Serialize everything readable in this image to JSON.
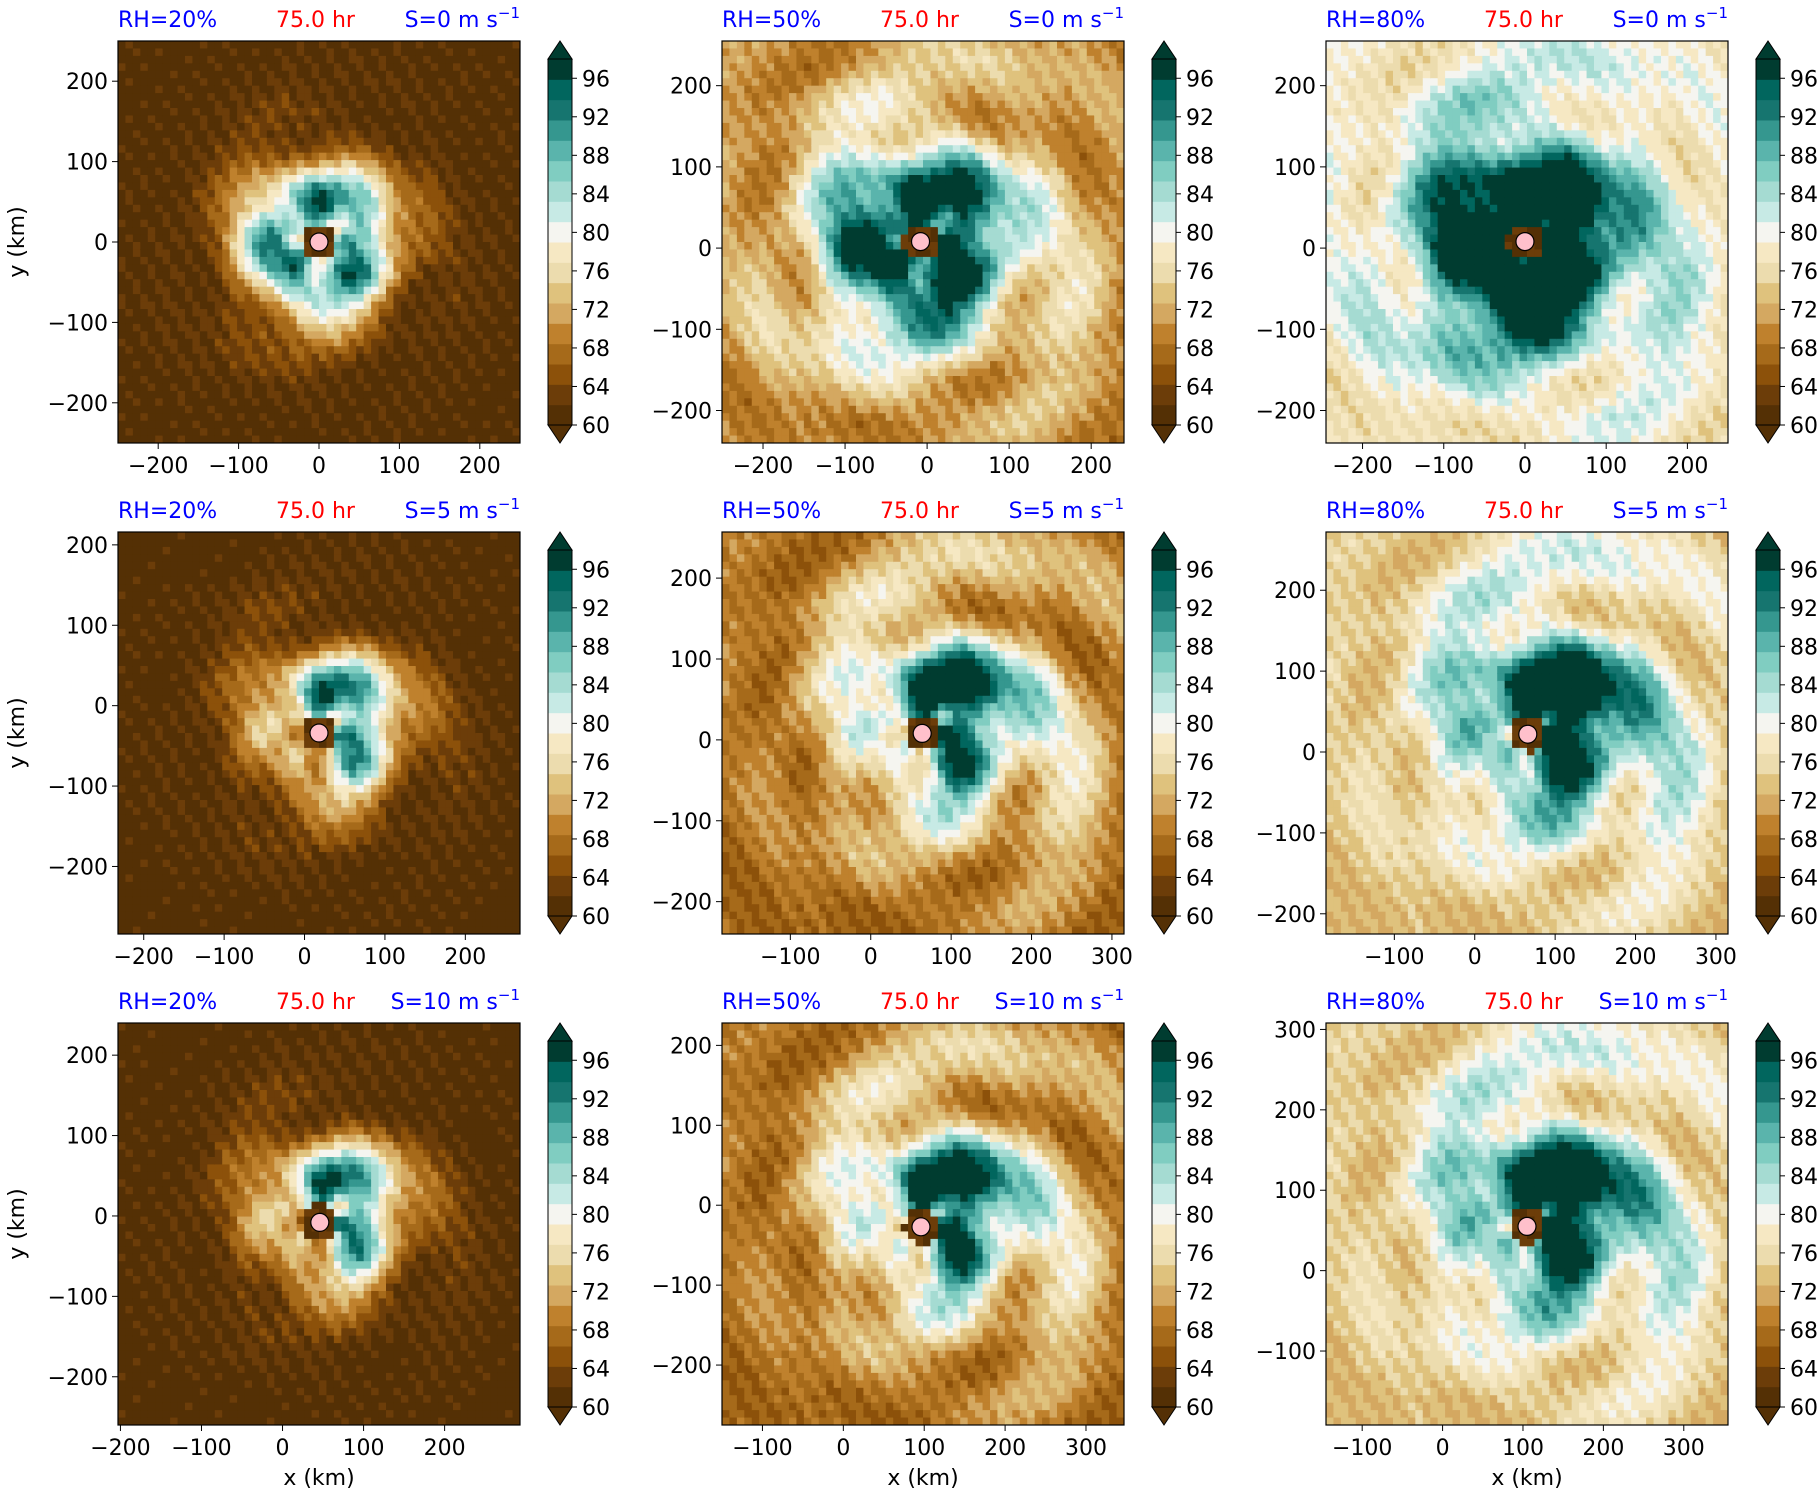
{
  "colors": {
    "rh_label": "#0000ff",
    "time_label": "#ff0000",
    "shear_label": "#0000ff",
    "center_marker": "#ffc0cb",
    "colormap": [
      "#543005",
      "#6c3d09",
      "#8c510a",
      "#a66a1a",
      "#bf812d",
      "#d4a861",
      "#dfc27d",
      "#ecdcae",
      "#f6e8c3",
      "#f5f5f0",
      "#c7eae5",
      "#a5dbd2",
      "#80cdc1",
      "#5ab4ac",
      "#35978f",
      "#16756f",
      "#01665e",
      "#003c30"
    ]
  },
  "chart_data": [
    {
      "type": "heatmap",
      "rh": "RH=20%",
      "time": "75.0 hr",
      "shear": "S=0 m s",
      "shear_sup": "−1",
      "ylabel": "y (km)",
      "xlabel": "",
      "xlim": [
        -250,
        250
      ],
      "ylim": [
        -250,
        250
      ],
      "xticks": [
        -200,
        -100,
        0,
        100,
        200
      ],
      "yticks": [
        -200,
        -100,
        0,
        100,
        200
      ],
      "xtick_labels": [
        "−200",
        "−100",
        "0",
        "100",
        "200"
      ],
      "ytick_labels": [
        "−200",
        "−100",
        "0",
        "100",
        "200"
      ],
      "center": [
        0,
        0
      ],
      "colorbar": {
        "min": 60,
        "max": 98,
        "ticks": [
          "60",
          "64",
          "68",
          "72",
          "76",
          "80",
          "84",
          "88",
          "92",
          "96"
        ]
      }
    },
    {
      "type": "heatmap",
      "rh": "RH=50%",
      "time": "75.0 hr",
      "shear": "S=0 m s",
      "shear_sup": "−1",
      "ylabel": "",
      "xlabel": "",
      "xlim": [
        -250,
        240
      ],
      "ylim": [
        -240,
        255
      ],
      "xticks": [
        -200,
        -100,
        0,
        100,
        200
      ],
      "yticks": [
        -200,
        -100,
        0,
        100,
        200
      ],
      "xtick_labels": [
        "−200",
        "−100",
        "0",
        "100",
        "200"
      ],
      "ytick_labels": [
        "−200",
        "−100",
        "0",
        "100",
        "200"
      ],
      "center": [
        -8,
        8
      ],
      "colorbar": {
        "min": 60,
        "max": 98,
        "ticks": [
          "60",
          "64",
          "68",
          "72",
          "76",
          "80",
          "84",
          "88",
          "92",
          "96"
        ]
      }
    },
    {
      "type": "heatmap",
      "rh": "RH=80%",
      "time": "75.0 hr",
      "shear": "S=0 m s",
      "shear_sup": "−1",
      "ylabel": "",
      "xlabel": "",
      "xlim": [
        -245,
        250
      ],
      "ylim": [
        -240,
        255
      ],
      "xticks": [
        -200,
        -100,
        0,
        100,
        200
      ],
      "yticks": [
        -200,
        -100,
        0,
        100,
        200
      ],
      "xtick_labels": [
        "−200",
        "−100",
        "0",
        "100",
        "200"
      ],
      "ytick_labels": [
        "−200",
        "−100",
        "0",
        "100",
        "200"
      ],
      "center": [
        0,
        8
      ],
      "colorbar": {
        "min": 60,
        "max": 98,
        "ticks": [
          "60",
          "64",
          "68",
          "72",
          "76",
          "80",
          "84",
          "88",
          "92",
          "96"
        ]
      }
    },
    {
      "type": "heatmap",
      "rh": "RH=20%",
      "time": "75.0 hr",
      "shear": "S=5 m s",
      "shear_sup": "−1",
      "ylabel": "y (km)",
      "xlabel": "",
      "xlim": [
        -232,
        268
      ],
      "ylim": [
        -284,
        216
      ],
      "xticks": [
        -200,
        -100,
        0,
        100,
        200
      ],
      "yticks": [
        -200,
        -100,
        0,
        100,
        200
      ],
      "xtick_labels": [
        "−200",
        "−100",
        "0",
        "100",
        "200"
      ],
      "ytick_labels": [
        "−200",
        "−100",
        "0",
        "100",
        "200"
      ],
      "center": [
        18,
        -34
      ],
      "colorbar": {
        "min": 60,
        "max": 98,
        "ticks": [
          "60",
          "64",
          "68",
          "72",
          "76",
          "80",
          "84",
          "88",
          "92",
          "96"
        ]
      }
    },
    {
      "type": "heatmap",
      "rh": "RH=50%",
      "time": "75.0 hr",
      "shear": "S=5 m s",
      "shear_sup": "−1",
      "ylabel": "",
      "xlabel": "",
      "xlim": [
        -185,
        315
      ],
      "ylim": [
        -240,
        257
      ],
      "xticks": [
        -100,
        0,
        100,
        200,
        300
      ],
      "yticks": [
        -200,
        -100,
        0,
        100,
        200
      ],
      "xtick_labels": [
        "−100",
        "0",
        "100",
        "200",
        "300"
      ],
      "ytick_labels": [
        "−200",
        "−100",
        "0",
        "100",
        "200"
      ],
      "center": [
        64,
        8
      ],
      "colorbar": {
        "min": 60,
        "max": 98,
        "ticks": [
          "60",
          "64",
          "68",
          "72",
          "76",
          "80",
          "84",
          "88",
          "92",
          "96"
        ]
      }
    },
    {
      "type": "heatmap",
      "rh": "RH=80%",
      "time": "75.0 hr",
      "shear": "S=5 m s",
      "shear_sup": "−1",
      "ylabel": "",
      "xlabel": "",
      "xlim": [
        -185,
        315
      ],
      "ylim": [
        -225,
        272
      ],
      "xticks": [
        -100,
        0,
        100,
        200,
        300
      ],
      "yticks": [
        -200,
        -100,
        0,
        100,
        200
      ],
      "xtick_labels": [
        "−100",
        "0",
        "100",
        "200",
        "300"
      ],
      "ytick_labels": [
        "−200",
        "−100",
        "0",
        "100",
        "200"
      ],
      "center": [
        66,
        22
      ],
      "colorbar": {
        "min": 60,
        "max": 98,
        "ticks": [
          "60",
          "64",
          "68",
          "72",
          "76",
          "80",
          "84",
          "88",
          "92",
          "96"
        ]
      }
    },
    {
      "type": "heatmap",
      "rh": "RH=20%",
      "time": "75.0 hr",
      "shear": "S=10 m s",
      "shear_sup": "−1",
      "ylabel": "y (km)",
      "xlabel": "x (km)",
      "xlim": [
        -203,
        293
      ],
      "ylim": [
        -260,
        240
      ],
      "xticks": [
        -200,
        -100,
        0,
        100,
        200
      ],
      "yticks": [
        -200,
        -100,
        0,
        100,
        200
      ],
      "xtick_labels": [
        "−200",
        "−100",
        "0",
        "100",
        "200"
      ],
      "ytick_labels": [
        "−200",
        "−100",
        "0",
        "100",
        "200"
      ],
      "center": [
        46,
        -8
      ],
      "colorbar": {
        "min": 60,
        "max": 98,
        "ticks": [
          "60",
          "64",
          "68",
          "72",
          "76",
          "80",
          "84",
          "88",
          "92",
          "96"
        ]
      }
    },
    {
      "type": "heatmap",
      "rh": "RH=50%",
      "time": "75.0 hr",
      "shear": "S=10 m s",
      "shear_sup": "−1",
      "ylabel": "",
      "xlabel": "x (km)",
      "xlim": [
        -150,
        347
      ],
      "ylim": [
        -275,
        228
      ],
      "xticks": [
        -100,
        0,
        100,
        200,
        300
      ],
      "yticks": [
        -200,
        -100,
        0,
        100,
        200
      ],
      "xtick_labels": [
        "−100",
        "0",
        "100",
        "200",
        "300"
      ],
      "ytick_labels": [
        "−200",
        "−100",
        "0",
        "100",
        "200"
      ],
      "center": [
        96,
        -27
      ],
      "colorbar": {
        "min": 60,
        "max": 98,
        "ticks": [
          "60",
          "64",
          "68",
          "72",
          "76",
          "80",
          "84",
          "88",
          "92",
          "96"
        ]
      }
    },
    {
      "type": "heatmap",
      "rh": "RH=80%",
      "time": "75.0 hr",
      "shear": "S=10 m s",
      "shear_sup": "−1",
      "ylabel": "",
      "xlabel": "x (km)",
      "xlim": [
        -145,
        355
      ],
      "ylim": [
        -192,
        308
      ],
      "xticks": [
        -100,
        0,
        100,
        200,
        300
      ],
      "yticks": [
        -100,
        0,
        100,
        200,
        300
      ],
      "xtick_labels": [
        "−100",
        "0",
        "100",
        "200",
        "300"
      ],
      "ytick_labels": [
        "−100",
        "0",
        "100",
        "200",
        "300"
      ],
      "center": [
        105,
        55
      ],
      "colorbar": {
        "min": 60,
        "max": 98,
        "ticks": [
          "60",
          "64",
          "68",
          "72",
          "76",
          "80",
          "84",
          "88",
          "92",
          "96"
        ]
      }
    }
  ]
}
